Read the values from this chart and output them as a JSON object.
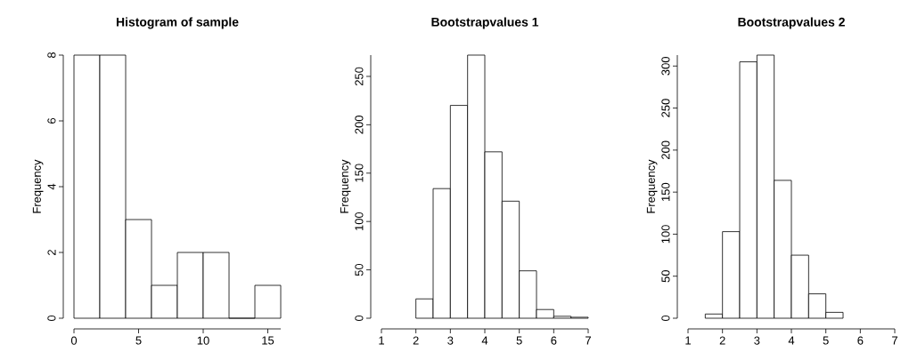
{
  "chart_data": [
    {
      "type": "histogram",
      "title": "Histogram of sample",
      "ylabel": "Frequency",
      "bins": [
        0,
        2,
        4,
        6,
        8,
        10,
        12,
        14,
        16
      ],
      "values": [
        8,
        8,
        3,
        1,
        2,
        2,
        0,
        1
      ],
      "color": "#ffffff",
      "xlim": [
        0,
        16
      ],
      "ylim": [
        0,
        8
      ],
      "xticks": [
        0,
        5,
        10,
        15
      ],
      "yticks": [
        0,
        2,
        4,
        6,
        8
      ],
      "grid": false
    },
    {
      "type": "histogram",
      "title": "Bootstrapvalues 1",
      "ylabel": "Frequency",
      "bins": [
        2,
        2.5,
        3,
        3.5,
        4,
        4.5,
        5,
        5.5,
        6,
        6.5,
        7
      ],
      "values": [
        20,
        134,
        220,
        272,
        172,
        121,
        49,
        9,
        2,
        1
      ],
      "color": "#ffffff",
      "xlim": [
        1,
        7
      ],
      "ylim": [
        0,
        272
      ],
      "xticks": [
        1,
        2,
        3,
        4,
        5,
        6,
        7
      ],
      "yticks": [
        0,
        50,
        100,
        150,
        200,
        250
      ],
      "grid": false
    },
    {
      "type": "histogram",
      "title": "Bootstrapvalues 2",
      "ylabel": "Frequency",
      "bins": [
        1.5,
        2,
        2.5,
        3,
        3.5,
        4,
        4.5,
        5,
        5.5
      ],
      "values": [
        5,
        103,
        305,
        313,
        164,
        75,
        29,
        7
      ],
      "color": "#ffffff",
      "xlim": [
        1,
        7
      ],
      "ylim": [
        0,
        313
      ],
      "xticks": [
        1,
        2,
        3,
        4,
        5,
        6,
        7
      ],
      "yticks": [
        0,
        50,
        100,
        150,
        200,
        250,
        300
      ],
      "grid": false
    }
  ]
}
